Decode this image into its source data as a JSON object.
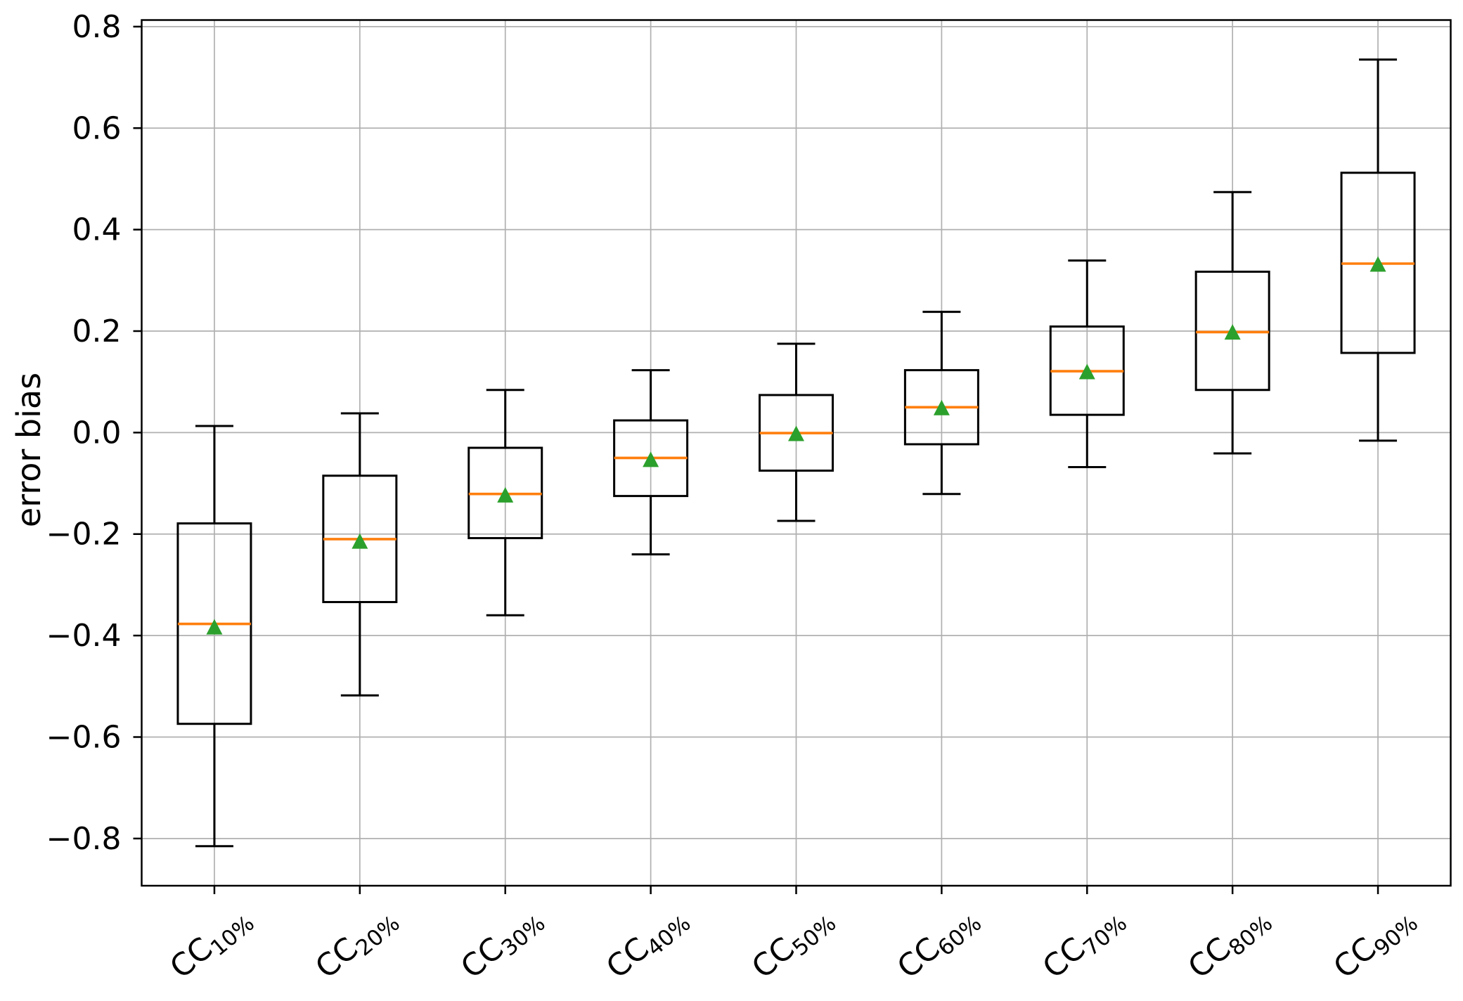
{
  "chart_data": {
    "type": "box",
    "title": "",
    "xlabel": "",
    "ylabel": "error bias",
    "grid": true,
    "legend": "none",
    "ylim": [
      -0.893,
      0.813
    ],
    "y_ticks": [
      {
        "value": 0.8,
        "label": "0.8"
      },
      {
        "value": 0.6,
        "label": "0.6"
      },
      {
        "value": 0.4,
        "label": "0.4"
      },
      {
        "value": 0.2,
        "label": "0.2"
      },
      {
        "value": 0.0,
        "label": "0.0"
      },
      {
        "value": -0.2,
        "label": "−0.2"
      },
      {
        "value": -0.4,
        "label": "−0.4"
      },
      {
        "value": -0.6,
        "label": "−0.6"
      },
      {
        "value": -0.8,
        "label": "−0.8"
      }
    ],
    "categories": [
      "CC10%",
      "CC20%",
      "CC30%",
      "CC40%",
      "CC50%",
      "CC60%",
      "CC70%",
      "CC80%",
      "CC90%"
    ],
    "category_parts": [
      {
        "base": "CC",
        "sub": "10%"
      },
      {
        "base": "CC",
        "sub": "20%"
      },
      {
        "base": "CC",
        "sub": "30%"
      },
      {
        "base": "CC",
        "sub": "40%"
      },
      {
        "base": "CC",
        "sub": "50%"
      },
      {
        "base": "CC",
        "sub": "60%"
      },
      {
        "base": "CC",
        "sub": "70%"
      },
      {
        "base": "CC",
        "sub": "80%"
      },
      {
        "base": "CC",
        "sub": "90%"
      }
    ],
    "boxes": [
      {
        "label": "CC10%",
        "whisker_low": -0.815,
        "q1": -0.574,
        "median": -0.377,
        "mean": -0.384,
        "q3": -0.179,
        "whisker_high": 0.013
      },
      {
        "label": "CC20%",
        "whisker_low": -0.518,
        "q1": -0.334,
        "median": -0.21,
        "mean": -0.215,
        "q3": -0.085,
        "whisker_high": 0.038
      },
      {
        "label": "CC30%",
        "whisker_low": -0.36,
        "q1": -0.208,
        "median": -0.121,
        "mean": -0.124,
        "q3": -0.03,
        "whisker_high": 0.084
      },
      {
        "label": "CC40%",
        "whisker_low": -0.24,
        "q1": -0.125,
        "median": -0.05,
        "mean": -0.054,
        "q3": 0.024,
        "whisker_high": 0.123
      },
      {
        "label": "CC50%",
        "whisker_low": -0.174,
        "q1": -0.075,
        "median": -0.001,
        "mean": -0.003,
        "q3": 0.074,
        "whisker_high": 0.175
      },
      {
        "label": "CC60%",
        "whisker_low": -0.121,
        "q1": -0.023,
        "median": 0.05,
        "mean": 0.048,
        "q3": 0.123,
        "whisker_high": 0.238
      },
      {
        "label": "CC70%",
        "whisker_low": -0.068,
        "q1": 0.035,
        "median": 0.121,
        "mean": 0.119,
        "q3": 0.209,
        "whisker_high": 0.339
      },
      {
        "label": "CC80%",
        "whisker_low": -0.041,
        "q1": 0.084,
        "median": 0.198,
        "mean": 0.197,
        "q3": 0.317,
        "whisker_high": 0.474
      },
      {
        "label": "CC90%",
        "whisker_low": -0.016,
        "q1": 0.157,
        "median": 0.333,
        "mean": 0.331,
        "q3": 0.512,
        "whisker_high": 0.735
      }
    ],
    "colors": {
      "box_line": "#000000",
      "median": "#ff7f0e",
      "mean_marker": "#2ca02c",
      "grid": "#b0b0b0",
      "background": "#ffffff",
      "text": "#000000"
    },
    "mean_marker_shape": "triangle-up"
  }
}
